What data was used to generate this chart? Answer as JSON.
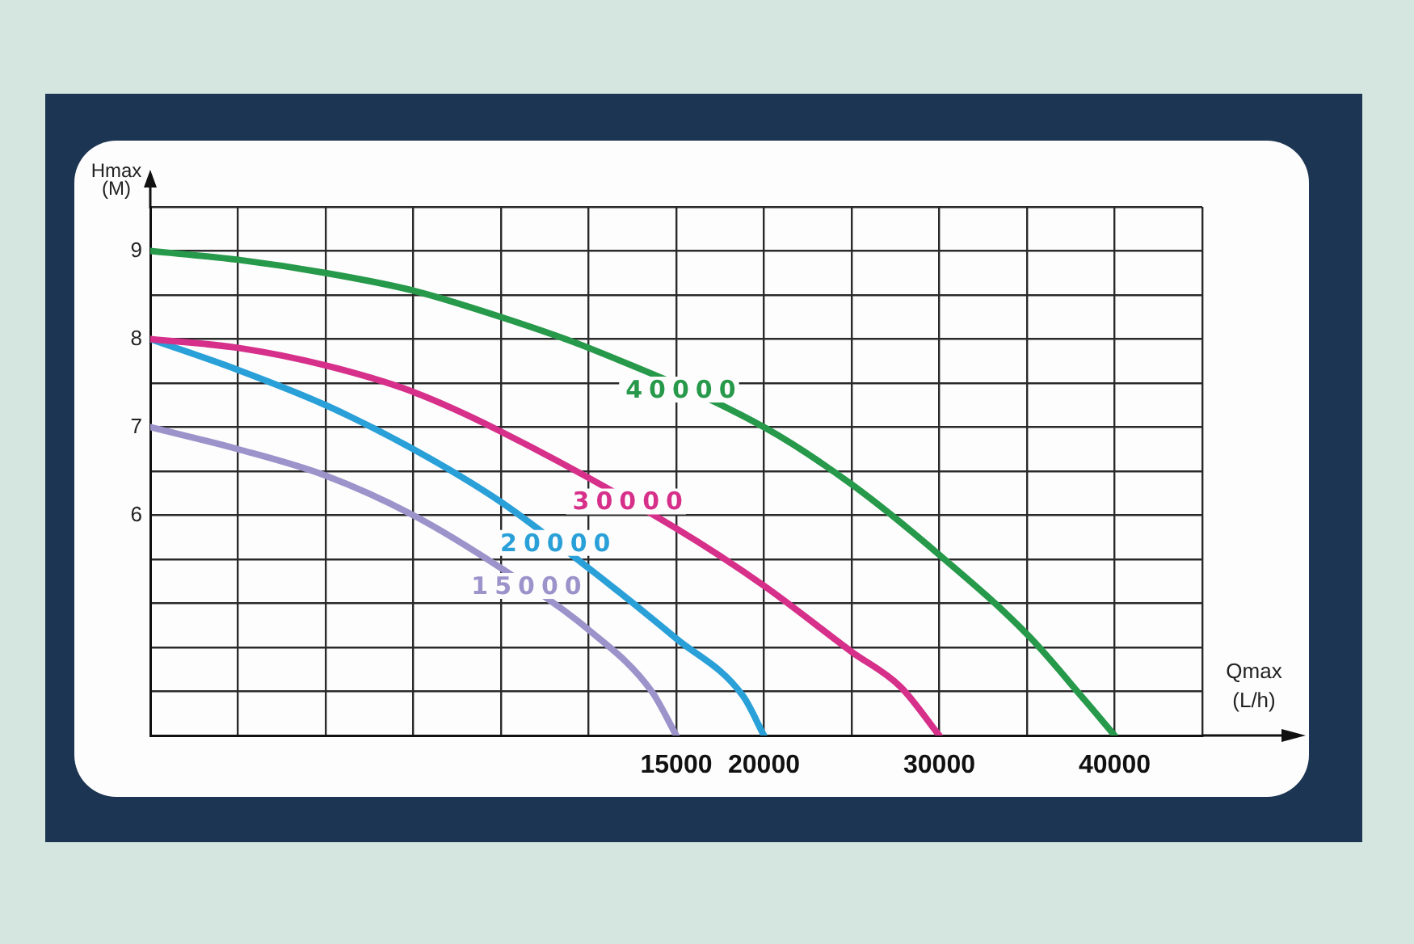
{
  "chart_data": {
    "type": "line",
    "xlabel": "Qmax (L/h)",
    "ylabel": "Hmax (M)",
    "xlim": [
      -15000,
      45000
    ],
    "xticks": [
      {
        "value": -15000,
        "label": null
      },
      {
        "value": -10000,
        "label": null
      },
      {
        "value": -5000,
        "label": null
      },
      {
        "value": 0,
        "label": null
      },
      {
        "value": 5000,
        "label": null
      },
      {
        "value": 10000,
        "label": null
      },
      15000,
      20000,
      {
        "value": 25000,
        "label": null
      },
      30000,
      {
        "value": 35000,
        "label": null
      },
      40000,
      {
        "value": 45000,
        "label": null
      }
    ],
    "ylim": [
      3.5,
      9.5
    ],
    "yticks": [
      {
        "value": 3.5,
        "label": null
      },
      {
        "value": 4,
        "label": null
      },
      {
        "value": 4.5,
        "label": null
      },
      {
        "value": 5,
        "label": null
      },
      {
        "value": 5.5,
        "label": null
      },
      6,
      {
        "value": 6.5,
        "label": null
      },
      7,
      {
        "value": 7.5,
        "label": null
      },
      8,
      {
        "value": 8.5,
        "label": null
      },
      9,
      {
        "value": 9.5,
        "label": null
      }
    ],
    "grid": true,
    "series": [
      {
        "name": "40000",
        "color": "#27994a",
        "x": [
          -15000,
          -10000,
          -5000,
          0,
          5000,
          10000,
          20000,
          25000,
          30000,
          35000,
          38300,
          40000
        ],
        "values": [
          9.0,
          8.9,
          8.75,
          8.55,
          8.25,
          7.9,
          7.0,
          6.35,
          5.55,
          4.65,
          3.9,
          3.5
        ]
      },
      {
        "name": "30000",
        "color": "#d6308a",
        "x": [
          -15000,
          -10000,
          -5000,
          0,
          5000,
          15000,
          20000,
          25000,
          27800,
          30000
        ],
        "values": [
          8.0,
          7.9,
          7.7,
          7.4,
          6.95,
          5.85,
          5.2,
          4.45,
          4.05,
          3.5
        ]
      },
      {
        "name": "20000",
        "color": "#2aa0d8",
        "x": [
          -15000,
          -10000,
          -5000,
          0,
          5000,
          10000,
          15000,
          18800,
          20000
        ],
        "values": [
          8.0,
          7.65,
          7.25,
          6.75,
          6.15,
          5.4,
          4.6,
          3.95,
          3.5
        ]
      },
      {
        "name": "15000",
        "color": "#9d93cb",
        "x": [
          -15000,
          -10000,
          -5000,
          0,
          5000,
          10000,
          13600,
          15000
        ],
        "values": [
          7.0,
          6.75,
          6.45,
          6.0,
          5.4,
          4.7,
          4.0,
          3.5
        ]
      }
    ]
  }
}
